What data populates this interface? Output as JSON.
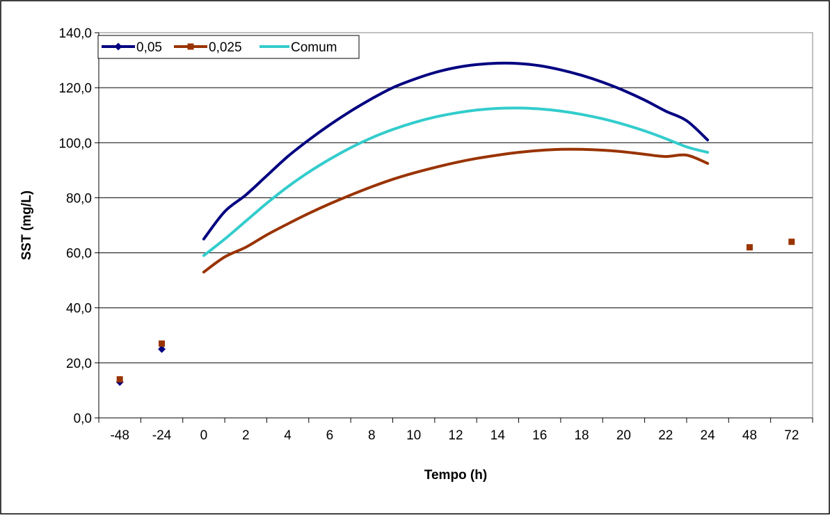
{
  "chart_data": {
    "type": "line",
    "title": "",
    "xlabel": "Tempo (h)",
    "ylabel": "SST (mg/L)",
    "ylim": [
      0,
      140
    ],
    "yticks": [
      "0,0",
      "20,0",
      "40,0",
      "60,0",
      "80,0",
      "100,0",
      "120,0",
      "140,0"
    ],
    "categories": [
      "-48",
      "-24",
      "0",
      "2",
      "4",
      "6",
      "8",
      "10",
      "12",
      "14",
      "16",
      "18",
      "20",
      "22",
      "24",
      "48",
      "72"
    ],
    "grid": true,
    "legend_position": "top-left",
    "series": [
      {
        "name": "0,05",
        "color": "#000080",
        "marker": "diamond",
        "isolated_points": [
          {
            "x": "-48",
            "y": 13
          },
          {
            "x": "-24",
            "y": 25
          }
        ],
        "curve_points": [
          {
            "x": 0,
            "y": 65
          },
          {
            "x": 1,
            "y": 75
          },
          {
            "x": 2,
            "y": 81
          },
          {
            "x": 3,
            "y": 88
          },
          {
            "x": 4,
            "y": 95
          },
          {
            "x": 5,
            "y": 101
          },
          {
            "x": 6,
            "y": 106.5
          },
          {
            "x": 7,
            "y": 111.5
          },
          {
            "x": 8,
            "y": 116
          },
          {
            "x": 9,
            "y": 120
          },
          {
            "x": 10,
            "y": 123
          },
          {
            "x": 11,
            "y": 125.5
          },
          {
            "x": 12,
            "y": 127.3
          },
          {
            "x": 13,
            "y": 128.4
          },
          {
            "x": 14,
            "y": 128.9
          },
          {
            "x": 15,
            "y": 128.8
          },
          {
            "x": 16,
            "y": 128
          },
          {
            "x": 17,
            "y": 126.5
          },
          {
            "x": 18,
            "y": 124.5
          },
          {
            "x": 19,
            "y": 122
          },
          {
            "x": 20,
            "y": 119
          },
          {
            "x": 21,
            "y": 115.5
          },
          {
            "x": 22,
            "y": 111.5
          },
          {
            "x": 23,
            "y": 108
          },
          {
            "x": 24,
            "y": 101
          }
        ]
      },
      {
        "name": "0,025",
        "color": "#993300",
        "marker": "square",
        "isolated_points": [
          {
            "x": "-48",
            "y": 14
          },
          {
            "x": "-24",
            "y": 27
          },
          {
            "x": "48",
            "y": 62
          },
          {
            "x": "72",
            "y": 64
          }
        ],
        "curve_points": [
          {
            "x": 0,
            "y": 53
          },
          {
            "x": 1,
            "y": 58.5
          },
          {
            "x": 2,
            "y": 62
          },
          {
            "x": 3,
            "y": 66.5
          },
          {
            "x": 4,
            "y": 70.5
          },
          {
            "x": 5,
            "y": 74.3
          },
          {
            "x": 6,
            "y": 77.8
          },
          {
            "x": 7,
            "y": 81
          },
          {
            "x": 8,
            "y": 84
          },
          {
            "x": 9,
            "y": 86.7
          },
          {
            "x": 10,
            "y": 89
          },
          {
            "x": 11,
            "y": 91
          },
          {
            "x": 12,
            "y": 92.8
          },
          {
            "x": 13,
            "y": 94.3
          },
          {
            "x": 14,
            "y": 95.5
          },
          {
            "x": 15,
            "y": 96.5
          },
          {
            "x": 16,
            "y": 97.2
          },
          {
            "x": 17,
            "y": 97.6
          },
          {
            "x": 18,
            "y": 97.6
          },
          {
            "x": 19,
            "y": 97.3
          },
          {
            "x": 20,
            "y": 96.7
          },
          {
            "x": 21,
            "y": 95.8
          },
          {
            "x": 22,
            "y": 95
          },
          {
            "x": 23,
            "y": 95.5
          },
          {
            "x": 24,
            "y": 92.5
          }
        ]
      },
      {
        "name": "Comum",
        "color": "#33CCCC",
        "marker": "none",
        "isolated_points": [],
        "curve_points": [
          {
            "x": 0,
            "y": 59
          },
          {
            "x": 1,
            "y": 65
          },
          {
            "x": 2,
            "y": 71.5
          },
          {
            "x": 3,
            "y": 78
          },
          {
            "x": 4,
            "y": 84
          },
          {
            "x": 5,
            "y": 89.3
          },
          {
            "x": 6,
            "y": 94
          },
          {
            "x": 7,
            "y": 98.2
          },
          {
            "x": 8,
            "y": 101.8
          },
          {
            "x": 9,
            "y": 104.8
          },
          {
            "x": 10,
            "y": 107.3
          },
          {
            "x": 11,
            "y": 109.3
          },
          {
            "x": 12,
            "y": 110.8
          },
          {
            "x": 13,
            "y": 111.9
          },
          {
            "x": 14,
            "y": 112.5
          },
          {
            "x": 15,
            "y": 112.6
          },
          {
            "x": 16,
            "y": 112.3
          },
          {
            "x": 17,
            "y": 111.5
          },
          {
            "x": 18,
            "y": 110.3
          },
          {
            "x": 19,
            "y": 108.7
          },
          {
            "x": 20,
            "y": 106.7
          },
          {
            "x": 21,
            "y": 104.3
          },
          {
            "x": 22,
            "y": 101.5
          },
          {
            "x": 23,
            "y": 98.5
          },
          {
            "x": 24,
            "y": 96.5
          }
        ]
      }
    ]
  }
}
